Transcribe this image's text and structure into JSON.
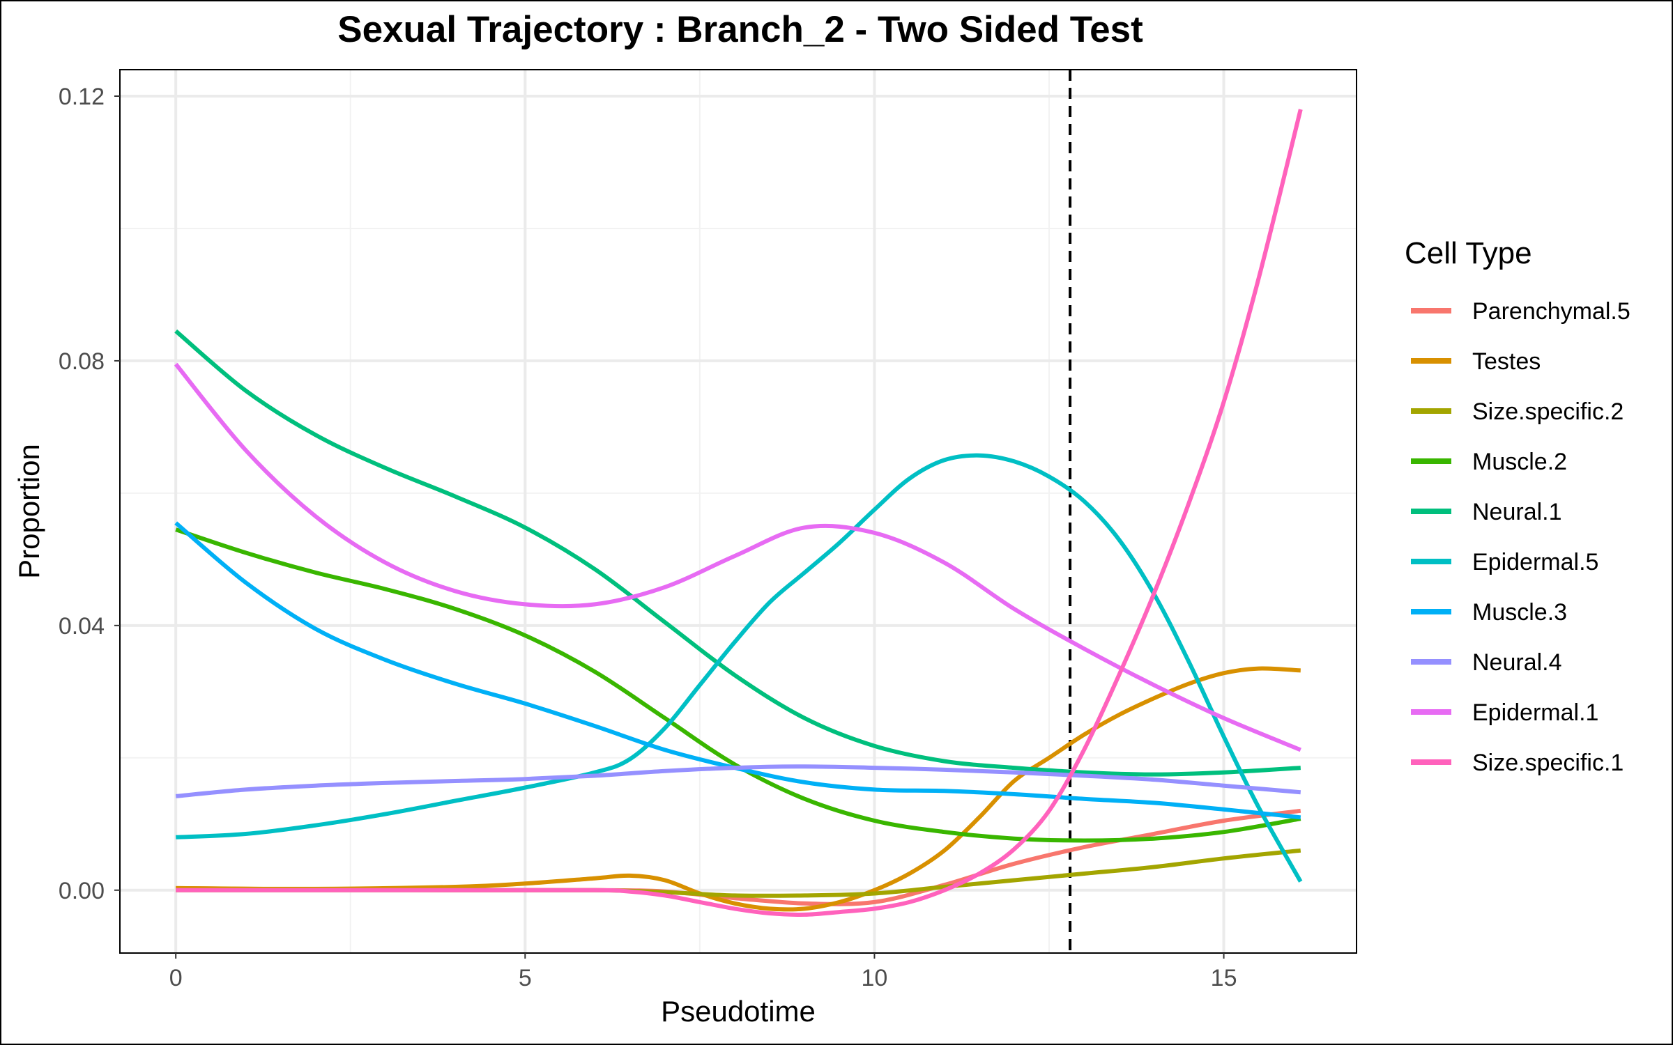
{
  "chart_data": {
    "type": "line",
    "title": "Sexual Trajectory : Branch_2 - Two Sided Test",
    "xlabel": "Pseudotime",
    "ylabel": "Proportion",
    "xlim": [
      -0.8,
      16.9
    ],
    "ylim": [
      -0.0095,
      0.124
    ],
    "x_ticks": [
      {
        "value": 0,
        "label": "0"
      },
      {
        "value": 5,
        "label": "5"
      },
      {
        "value": 10,
        "label": "10"
      },
      {
        "value": 15,
        "label": "15"
      }
    ],
    "y_ticks": [
      {
        "value": 0.0,
        "label": "0.00"
      },
      {
        "value": 0.04,
        "label": "0.04"
      },
      {
        "value": 0.08,
        "label": "0.08"
      },
      {
        "value": 0.12,
        "label": "0.12"
      }
    ],
    "grid": true,
    "reference_line": {
      "x": 12.8,
      "style": "dashed",
      "color": "#000000"
    },
    "legend": {
      "title": "Cell Type",
      "placement": "right"
    },
    "series": [
      {
        "name": "Parenchymal.5",
        "color": "#F8766D",
        "points": [
          [
            0,
            0.0003
          ],
          [
            2,
            0.0001
          ],
          [
            4,
            0
          ],
          [
            6,
            0
          ],
          [
            7,
            -0.0002
          ],
          [
            8,
            -0.0012
          ],
          [
            9,
            -0.002
          ],
          [
            10,
            -0.0018
          ],
          [
            11,
            0.0008
          ],
          [
            12,
            0.004
          ],
          [
            13,
            0.0065
          ],
          [
            14,
            0.0085
          ],
          [
            15,
            0.0105
          ],
          [
            16.1,
            0.012
          ]
        ]
      },
      {
        "name": "Testes",
        "color": "#D89000",
        "points": [
          [
            0,
            0.0003
          ],
          [
            2,
            0.0002
          ],
          [
            4,
            0.0005
          ],
          [
            5,
            0.001
          ],
          [
            6,
            0.0018
          ],
          [
            6.5,
            0.0022
          ],
          [
            7,
            0.0015
          ],
          [
            7.5,
            -0.0005
          ],
          [
            8,
            -0.002
          ],
          [
            8.5,
            -0.0028
          ],
          [
            9,
            -0.0028
          ],
          [
            9.5,
            -0.0018
          ],
          [
            10,
            0
          ],
          [
            10.5,
            0.0025
          ],
          [
            11,
            0.006
          ],
          [
            11.5,
            0.011
          ],
          [
            12,
            0.0165
          ],
          [
            12.5,
            0.02
          ],
          [
            13,
            0.0235
          ],
          [
            13.5,
            0.0265
          ],
          [
            14,
            0.029
          ],
          [
            14.5,
            0.0312
          ],
          [
            15,
            0.0328
          ],
          [
            15.5,
            0.0335
          ],
          [
            16.1,
            0.0332
          ]
        ]
      },
      {
        "name": "Size.specific.2",
        "color": "#A3A500",
        "points": [
          [
            0,
            0
          ],
          [
            2,
            0
          ],
          [
            4,
            0
          ],
          [
            6,
            0
          ],
          [
            7,
            -0.0003
          ],
          [
            8,
            -0.0008
          ],
          [
            9,
            -0.0008
          ],
          [
            10,
            -0.0005
          ],
          [
            11,
            0.0005
          ],
          [
            12,
            0.0015
          ],
          [
            13,
            0.0025
          ],
          [
            14,
            0.0035
          ],
          [
            15,
            0.0048
          ],
          [
            16.1,
            0.006
          ]
        ]
      },
      {
        "name": "Muscle.2",
        "color": "#39B600",
        "points": [
          [
            0,
            0.0545
          ],
          [
            1,
            0.051
          ],
          [
            2,
            0.048
          ],
          [
            3,
            0.0455
          ],
          [
            4,
            0.0425
          ],
          [
            5,
            0.0385
          ],
          [
            6,
            0.033
          ],
          [
            7,
            0.026
          ],
          [
            8,
            0.019
          ],
          [
            9,
            0.0138
          ],
          [
            10,
            0.0105
          ],
          [
            11,
            0.0088
          ],
          [
            12,
            0.0078
          ],
          [
            13,
            0.0075
          ],
          [
            14,
            0.0078
          ],
          [
            15,
            0.0088
          ],
          [
            16.1,
            0.0108
          ]
        ]
      },
      {
        "name": "Neural.1",
        "color": "#00BF7D",
        "points": [
          [
            0,
            0.0845
          ],
          [
            1,
            0.0755
          ],
          [
            2,
            0.0688
          ],
          [
            3,
            0.0638
          ],
          [
            4,
            0.0595
          ],
          [
            5,
            0.0548
          ],
          [
            6,
            0.0485
          ],
          [
            7,
            0.0405
          ],
          [
            8,
            0.0325
          ],
          [
            9,
            0.026
          ],
          [
            10,
            0.0218
          ],
          [
            11,
            0.0195
          ],
          [
            12,
            0.0185
          ],
          [
            13,
            0.0178
          ],
          [
            14,
            0.0175
          ],
          [
            15,
            0.0178
          ],
          [
            16.1,
            0.0185
          ]
        ]
      },
      {
        "name": "Epidermal.5",
        "color": "#00BFC4",
        "points": [
          [
            0,
            0.008
          ],
          [
            1,
            0.0085
          ],
          [
            2,
            0.0098
          ],
          [
            3,
            0.0115
          ],
          [
            4,
            0.0135
          ],
          [
            5,
            0.0155
          ],
          [
            6,
            0.0178
          ],
          [
            6.5,
            0.0198
          ],
          [
            7,
            0.0245
          ],
          [
            7.5,
            0.031
          ],
          [
            8,
            0.0375
          ],
          [
            8.5,
            0.0435
          ],
          [
            9,
            0.048
          ],
          [
            9.5,
            0.0525
          ],
          [
            10,
            0.0575
          ],
          [
            10.5,
            0.0622
          ],
          [
            11,
            0.065
          ],
          [
            11.5,
            0.0657
          ],
          [
            12,
            0.0648
          ],
          [
            12.5,
            0.0625
          ],
          [
            13,
            0.0588
          ],
          [
            13.5,
            0.053
          ],
          [
            14,
            0.0448
          ],
          [
            14.5,
            0.0345
          ],
          [
            15,
            0.0232
          ],
          [
            15.5,
            0.0125
          ],
          [
            16.1,
            0.0013
          ]
        ]
      },
      {
        "name": "Muscle.3",
        "color": "#00B0F6",
        "points": [
          [
            0,
            0.0555
          ],
          [
            1,
            0.0465
          ],
          [
            2,
            0.0395
          ],
          [
            3,
            0.0348
          ],
          [
            4,
            0.0312
          ],
          [
            5,
            0.0282
          ],
          [
            6,
            0.0248
          ],
          [
            7,
            0.0212
          ],
          [
            8,
            0.0185
          ],
          [
            9,
            0.0163
          ],
          [
            10,
            0.0152
          ],
          [
            11,
            0.015
          ],
          [
            12,
            0.0145
          ],
          [
            13,
            0.0138
          ],
          [
            14,
            0.0132
          ],
          [
            15,
            0.0122
          ],
          [
            16.1,
            0.011
          ]
        ]
      },
      {
        "name": "Neural.4",
        "color": "#9590FF",
        "points": [
          [
            0,
            0.0142
          ],
          [
            1,
            0.0152
          ],
          [
            2,
            0.0158
          ],
          [
            3,
            0.0162
          ],
          [
            4,
            0.0165
          ],
          [
            5,
            0.0168
          ],
          [
            6,
            0.0173
          ],
          [
            7,
            0.018
          ],
          [
            8,
            0.0185
          ],
          [
            9,
            0.0187
          ],
          [
            10,
            0.0185
          ],
          [
            11,
            0.0182
          ],
          [
            12,
            0.0178
          ],
          [
            13,
            0.0173
          ],
          [
            14,
            0.0167
          ],
          [
            15,
            0.0158
          ],
          [
            16.1,
            0.0148
          ]
        ]
      },
      {
        "name": "Epidermal.1",
        "color": "#E76BF3",
        "points": [
          [
            0,
            0.0795
          ],
          [
            1,
            0.0665
          ],
          [
            2,
            0.0565
          ],
          [
            3,
            0.0495
          ],
          [
            4,
            0.0452
          ],
          [
            5,
            0.0432
          ],
          [
            6,
            0.0432
          ],
          [
            7,
            0.0458
          ],
          [
            8,
            0.0505
          ],
          [
            9,
            0.0548
          ],
          [
            10,
            0.054
          ],
          [
            11,
            0.0495
          ],
          [
            12,
            0.0425
          ],
          [
            13,
            0.0365
          ],
          [
            14,
            0.031
          ],
          [
            15,
            0.026
          ],
          [
            16.1,
            0.0212
          ]
        ]
      },
      {
        "name": "Size.specific.1",
        "color": "#FF62BC",
        "points": [
          [
            0,
            0
          ],
          [
            2,
            0
          ],
          [
            4,
            0
          ],
          [
            6,
            0
          ],
          [
            6.5,
            -0.0002
          ],
          [
            7,
            -0.0008
          ],
          [
            7.5,
            -0.0018
          ],
          [
            8,
            -0.0028
          ],
          [
            8.5,
            -0.0035
          ],
          [
            9,
            -0.0037
          ],
          [
            9.5,
            -0.0033
          ],
          [
            10,
            -0.0028
          ],
          [
            10.5,
            -0.0018
          ],
          [
            11,
            0
          ],
          [
            11.5,
            0.0025
          ],
          [
            12,
            0.0062
          ],
          [
            12.5,
            0.012
          ],
          [
            13,
            0.0212
          ],
          [
            13.5,
            0.0325
          ],
          [
            14,
            0.0448
          ],
          [
            14.5,
            0.0585
          ],
          [
            15,
            0.0738
          ],
          [
            15.5,
            0.0925
          ],
          [
            16.1,
            0.118
          ]
        ]
      }
    ]
  }
}
